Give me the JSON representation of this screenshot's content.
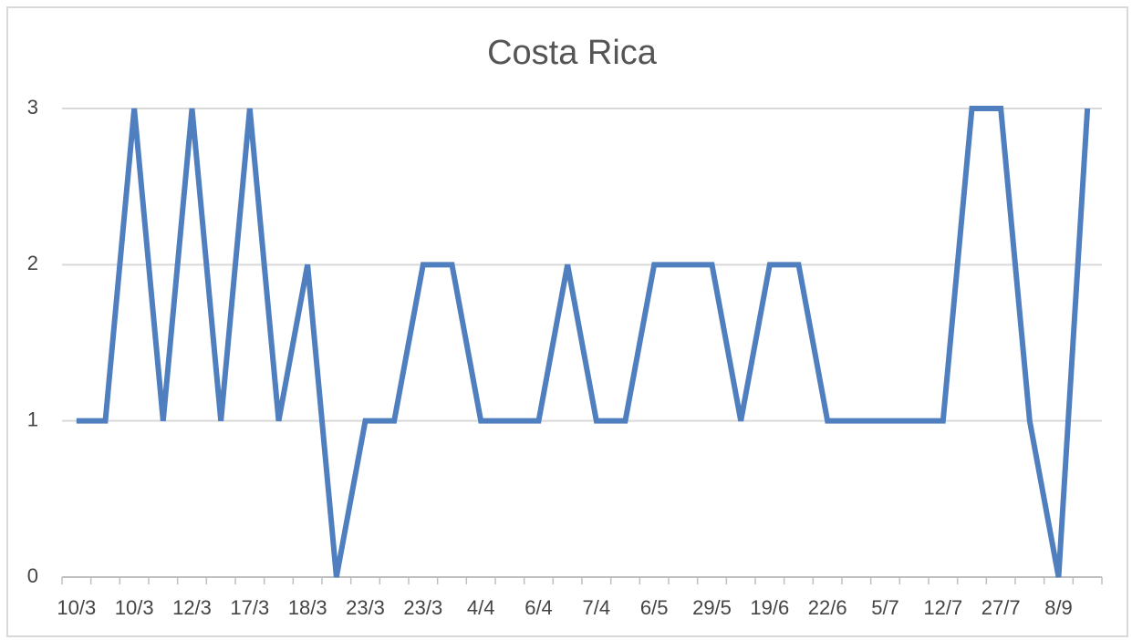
{
  "chart_data": {
    "type": "line",
    "title": "Costa Rica",
    "categories": [
      "10/3",
      null,
      "10/3",
      null,
      "12/3",
      null,
      "17/3",
      null,
      "18/3",
      null,
      "23/3",
      null,
      "23/3",
      null,
      "4/4",
      null,
      "6/4",
      null,
      "7/4",
      null,
      "6/5",
      null,
      "29/5",
      null,
      "19/6",
      null,
      "22/6",
      null,
      "5/7",
      null,
      "12/7",
      null,
      "27/7",
      null,
      "8/9",
      null
    ],
    "series": [
      {
        "name": "Costa Rica",
        "color": "#4f7fbf",
        "values": [
          1,
          1,
          3,
          1,
          3,
          1,
          3,
          1,
          2,
          0,
          1,
          1,
          2,
          2,
          1,
          1,
          1,
          2,
          1,
          1,
          2,
          2,
          2,
          1,
          2,
          2,
          1,
          1,
          1,
          1,
          1,
          3,
          3,
          1,
          0,
          3
        ]
      }
    ],
    "ylim": [
      0,
      3
    ],
    "yticks": [
      0,
      1,
      2,
      3
    ],
    "grid": true
  }
}
